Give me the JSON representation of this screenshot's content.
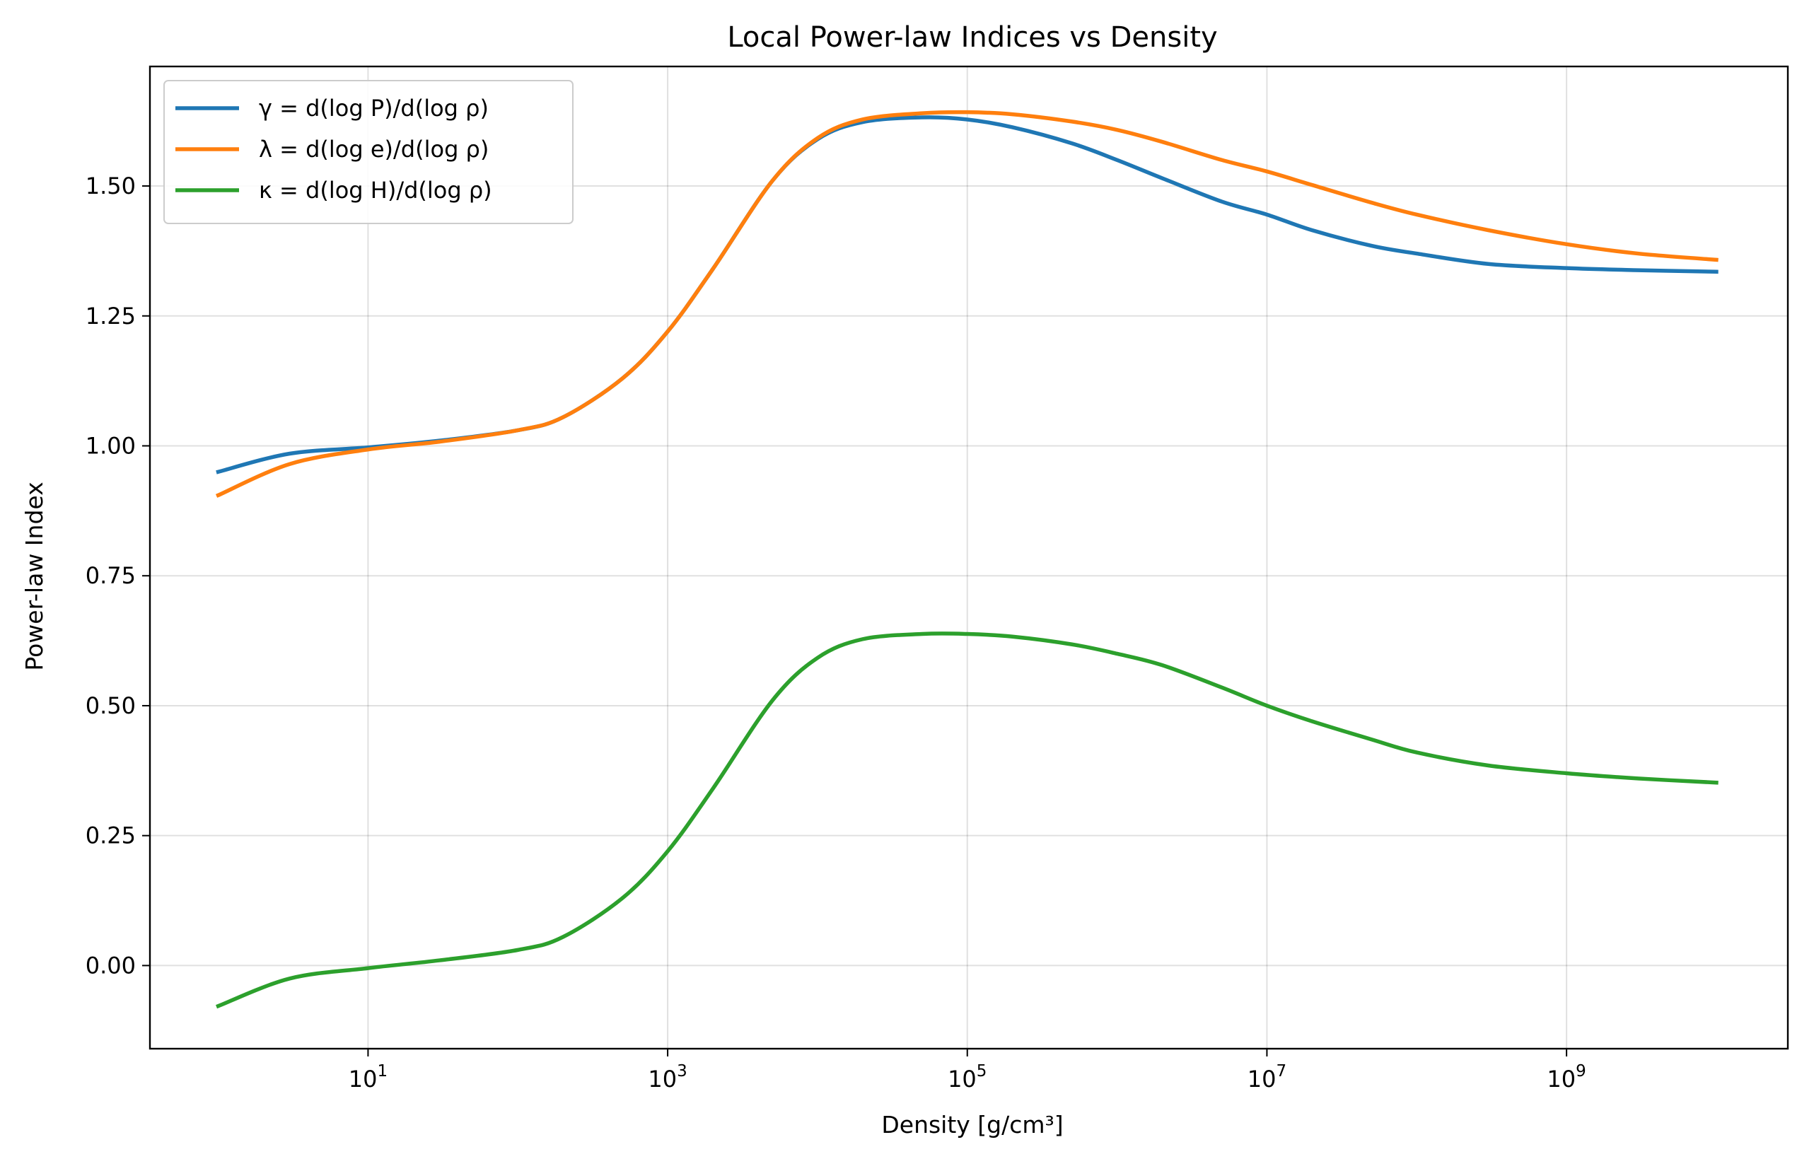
{
  "chart_data": {
    "type": "line",
    "title": "Local Power-law Indices vs Density",
    "xlabel": "Density [g/cm³]",
    "ylabel": "Power-law Index",
    "xscale": "log",
    "xlim": [
      0.35,
      30000000000
    ],
    "ylim": [
      -0.16,
      1.73
    ],
    "grid": true,
    "legend_position": "upper left",
    "x_ticks": [
      {
        "value": 10,
        "base": "10",
        "exp": "1"
      },
      {
        "value": 1000,
        "base": "10",
        "exp": "3"
      },
      {
        "value": 100000,
        "base": "10",
        "exp": "5"
      },
      {
        "value": 10000000,
        "base": "10",
        "exp": "7"
      },
      {
        "value": 1000000000,
        "base": "10",
        "exp": "9"
      }
    ],
    "y_ticks": [
      {
        "value": 0.0,
        "label": "0.00"
      },
      {
        "value": 0.25,
        "label": "0.25"
      },
      {
        "value": 0.5,
        "label": "0.50"
      },
      {
        "value": 0.75,
        "label": "0.75"
      },
      {
        "value": 1.0,
        "label": "1.00"
      },
      {
        "value": 1.25,
        "label": "1.25"
      },
      {
        "value": 1.5,
        "label": "1.50"
      }
    ],
    "series": [
      {
        "name": "γ = d(log P)/d(log ρ)",
        "color": "#1f77b4",
        "x": [
          1,
          3,
          10,
          30,
          100,
          200,
          500,
          1000,
          2000,
          5000,
          10000,
          20000,
          50000,
          100000,
          200000,
          500000,
          1000000,
          2000000,
          5000000,
          10000000,
          20000000,
          50000000,
          100000000,
          300000000,
          1000000000,
          3000000000,
          10000000000
        ],
        "y": [
          0.95,
          0.985,
          0.997,
          1.01,
          1.03,
          1.055,
          1.13,
          1.22,
          1.34,
          1.51,
          1.59,
          1.623,
          1.632,
          1.628,
          1.613,
          1.582,
          1.55,
          1.515,
          1.47,
          1.445,
          1.415,
          1.385,
          1.37,
          1.35,
          1.342,
          1.338,
          1.335
        ]
      },
      {
        "name": "λ = d(log e)/d(log ρ)",
        "color": "#ff7f0e",
        "x": [
          1,
          3,
          10,
          30,
          100,
          200,
          500,
          1000,
          2000,
          5000,
          10000,
          20000,
          50000,
          100000,
          200000,
          500000,
          1000000,
          2000000,
          5000000,
          10000000,
          20000000,
          50000000,
          100000000,
          300000000,
          1000000000,
          3000000000,
          10000000000
        ],
        "y": [
          0.905,
          0.965,
          0.993,
          1.008,
          1.03,
          1.055,
          1.13,
          1.22,
          1.34,
          1.51,
          1.592,
          1.628,
          1.64,
          1.642,
          1.638,
          1.624,
          1.608,
          1.585,
          1.55,
          1.528,
          1.502,
          1.468,
          1.445,
          1.415,
          1.388,
          1.37,
          1.358
        ]
      },
      {
        "name": "κ = d(log H)/d(log ρ)",
        "color": "#2ca02c",
        "x": [
          1,
          3,
          10,
          30,
          100,
          200,
          500,
          1000,
          2000,
          5000,
          10000,
          20000,
          50000,
          100000,
          200000,
          500000,
          1000000,
          2000000,
          5000000,
          10000000,
          20000000,
          50000000,
          100000000,
          300000000,
          1000000000,
          3000000000,
          10000000000
        ],
        "y": [
          -0.078,
          -0.025,
          -0.005,
          0.01,
          0.03,
          0.055,
          0.13,
          0.22,
          0.34,
          0.51,
          0.592,
          0.628,
          0.638,
          0.638,
          0.633,
          0.618,
          0.6,
          0.578,
          0.535,
          0.5,
          0.47,
          0.435,
          0.41,
          0.385,
          0.37,
          0.36,
          0.352
        ]
      }
    ]
  }
}
